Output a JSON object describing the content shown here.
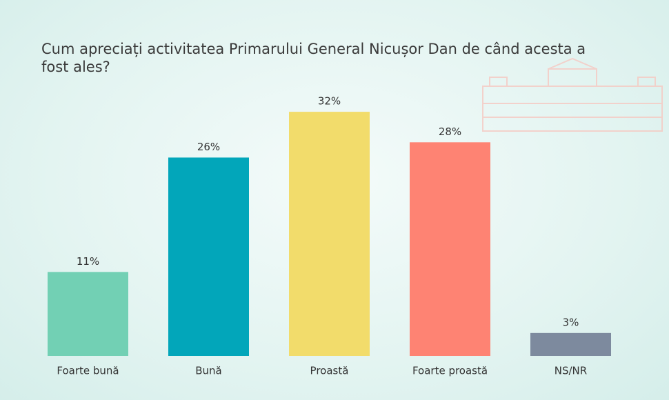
{
  "chart_data": {
    "type": "bar",
    "title": "Cum apreciați activitatea Primarului General Nicușor Dan de când acesta a fost ales?",
    "categories": [
      "Foarte bună",
      "Bună",
      "Proastă",
      "Foarte proastă",
      "NS/NR"
    ],
    "values": [
      11,
      26,
      32,
      28,
      3
    ],
    "value_labels": [
      "11%",
      "26%",
      "32%",
      "28%",
      "3%"
    ],
    "colors": [
      "#72d0b4",
      "#02a6ba",
      "#f2dc6b",
      "#fe8373",
      "#7d8a9e"
    ]
  }
}
